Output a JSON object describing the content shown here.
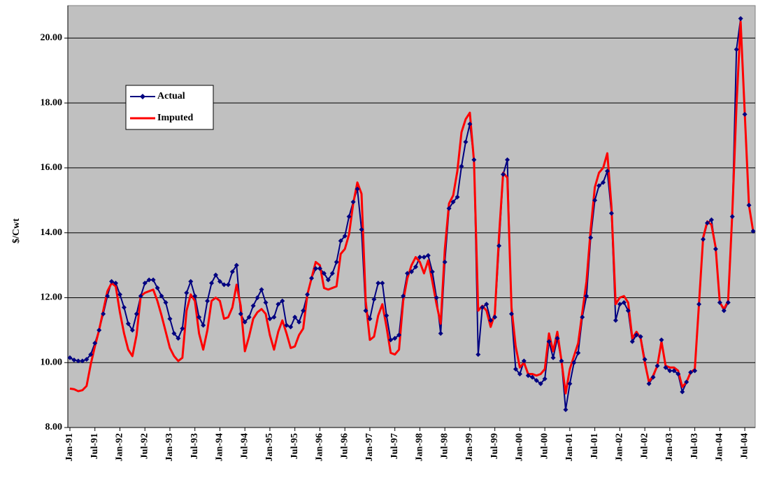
{
  "chart_data": {
    "type": "line",
    "y_label": "$/Cwt",
    "categories": [
      "Jan-91",
      null,
      null,
      null,
      null,
      null,
      "Jul-91",
      null,
      null,
      null,
      null,
      null,
      "Jan-92",
      null,
      null,
      null,
      null,
      null,
      "Jul-92",
      null,
      null,
      null,
      null,
      null,
      "Jan-93",
      null,
      null,
      null,
      null,
      null,
      "Jul-93",
      null,
      null,
      null,
      null,
      null,
      "Jan-94",
      null,
      null,
      null,
      null,
      null,
      "Jul-94",
      null,
      null,
      null,
      null,
      null,
      "Jan-95",
      null,
      null,
      null,
      null,
      null,
      "Jul-95",
      null,
      null,
      null,
      null,
      null,
      "Jan-96",
      null,
      null,
      null,
      null,
      null,
      "Jul-96",
      null,
      null,
      null,
      null,
      null,
      "Jan-97",
      null,
      null,
      null,
      null,
      null,
      "Jul-97",
      null,
      null,
      null,
      null,
      null,
      "Jan-98",
      null,
      null,
      null,
      null,
      null,
      "Jul-98",
      null,
      null,
      null,
      null,
      null,
      "Jan-99",
      null,
      null,
      null,
      null,
      null,
      "Jul-99",
      null,
      null,
      null,
      null,
      null,
      "Jan-00",
      null,
      null,
      null,
      null,
      null,
      "Jul-00",
      null,
      null,
      null,
      null,
      null,
      "Jan-01",
      null,
      null,
      null,
      null,
      null,
      "Jul-01",
      null,
      null,
      null,
      null,
      null,
      "Jan-02",
      null,
      null,
      null,
      null,
      null,
      "Jul-02",
      null,
      null,
      null,
      null,
      null,
      "Jan-03",
      null,
      null,
      null,
      null,
      null,
      "Jul-03",
      null,
      null,
      null,
      null,
      null,
      "Jan-04",
      null,
      null,
      null,
      null,
      null,
      "Jul-04",
      null,
      null
    ],
    "series": [
      {
        "name": "Actual",
        "color": "#000080",
        "marker": "diamond",
        "values": [
          10.15,
          10.08,
          10.05,
          10.05,
          10.1,
          10.25,
          10.6,
          11.0,
          11.5,
          12.05,
          12.5,
          12.45,
          12.1,
          11.7,
          11.2,
          11.0,
          11.5,
          12.05,
          12.45,
          12.55,
          12.55,
          12.3,
          12.05,
          11.85,
          11.35,
          10.9,
          10.75,
          11.05,
          12.15,
          12.5,
          12.05,
          11.4,
          11.15,
          11.9,
          12.45,
          12.7,
          12.5,
          12.4,
          12.4,
          12.8,
          13.0,
          11.5,
          11.25,
          11.4,
          11.75,
          12.0,
          12.25,
          11.85,
          11.35,
          11.4,
          11.8,
          11.9,
          11.15,
          11.1,
          11.4,
          11.25,
          11.6,
          12.1,
          12.6,
          12.9,
          12.9,
          12.75,
          12.55,
          12.75,
          13.1,
          13.75,
          13.9,
          14.5,
          14.95,
          15.35,
          14.1,
          11.6,
          11.35,
          11.95,
          12.45,
          12.45,
          11.45,
          10.7,
          10.75,
          10.85,
          12.05,
          12.75,
          12.8,
          12.95,
          13.25,
          13.25,
          13.3,
          12.8,
          12.0,
          10.9,
          13.1,
          14.75,
          14.95,
          15.1,
          16.05,
          16.8,
          17.35,
          16.25,
          10.25,
          11.7,
          11.8,
          11.3,
          11.4,
          13.6,
          15.8,
          16.25,
          11.5,
          9.8,
          9.65,
          10.05,
          9.6,
          9.55,
          9.45,
          9.35,
          9.5,
          10.65,
          10.15,
          10.75,
          10.05,
          8.55,
          9.35,
          10.0,
          10.3,
          11.4,
          12.05,
          13.85,
          15.0,
          15.45,
          15.55,
          15.9,
          14.6,
          11.3,
          11.8,
          11.85,
          11.6,
          10.65,
          10.85,
          10.8,
          10.1,
          9.35,
          9.55,
          9.9,
          10.7,
          9.85,
          9.75,
          9.75,
          9.65,
          9.1,
          9.4,
          9.7,
          9.75,
          11.8,
          13.8,
          14.3,
          14.4,
          13.5,
          11.85,
          11.6,
          11.85,
          14.5,
          19.65,
          20.6,
          17.65,
          14.85,
          14.05
        ]
      },
      {
        "name": "Imputed",
        "color": "#ff0000",
        "values": [
          9.2,
          9.18,
          9.12,
          9.15,
          9.28,
          9.95,
          10.5,
          11.0,
          11.6,
          12.2,
          12.45,
          12.35,
          11.55,
          10.9,
          10.4,
          10.2,
          10.85,
          12.05,
          12.15,
          12.2,
          12.25,
          11.9,
          11.45,
          10.95,
          10.45,
          10.2,
          10.05,
          10.15,
          11.6,
          12.1,
          11.9,
          10.9,
          10.4,
          11.0,
          11.9,
          12.0,
          11.9,
          11.35,
          11.4,
          11.7,
          12.4,
          11.75,
          10.35,
          10.8,
          11.35,
          11.55,
          11.65,
          11.5,
          10.85,
          10.4,
          10.95,
          11.3,
          10.9,
          10.45,
          10.5,
          10.85,
          11.05,
          12.1,
          12.6,
          13.1,
          13.0,
          12.3,
          12.25,
          12.3,
          12.35,
          13.35,
          13.5,
          13.95,
          14.9,
          15.55,
          15.2,
          11.9,
          10.7,
          10.8,
          11.45,
          11.8,
          11.1,
          10.3,
          10.25,
          10.4,
          11.9,
          12.6,
          13.0,
          13.25,
          13.1,
          12.75,
          13.15,
          12.5,
          11.8,
          11.2,
          13.5,
          14.9,
          15.15,
          15.9,
          17.1,
          17.5,
          17.7,
          16.2,
          11.6,
          11.75,
          11.6,
          11.1,
          11.5,
          13.9,
          15.85,
          15.7,
          11.7,
          10.5,
          9.85,
          10.0,
          9.65,
          9.65,
          9.6,
          9.65,
          9.8,
          10.9,
          10.35,
          10.95,
          10.05,
          9.05,
          9.8,
          10.2,
          10.6,
          11.55,
          12.5,
          14.1,
          15.4,
          15.85,
          16.0,
          16.45,
          14.8,
          11.8,
          12.0,
          12.05,
          11.85,
          10.75,
          10.95,
          10.75,
          10.0,
          9.4,
          9.6,
          9.9,
          10.65,
          9.9,
          9.85,
          9.85,
          9.75,
          9.25,
          9.4,
          9.7,
          9.8,
          11.8,
          13.85,
          14.35,
          14.25,
          13.55,
          11.85,
          11.65,
          11.9,
          14.6,
          17.9,
          20.5,
          17.65,
          14.85,
          14.05
        ]
      }
    ],
    "ylim": [
      8,
      21
    ],
    "yticks": [
      {
        "value": 8,
        "label": "8.00"
      },
      {
        "value": 10,
        "label": "10.00"
      },
      {
        "value": 12,
        "label": "12.00"
      },
      {
        "value": 14,
        "label": "14.00"
      },
      {
        "value": 16,
        "label": "16.00"
      },
      {
        "value": 18,
        "label": "18.00"
      },
      {
        "value": 20,
        "label": "20.00"
      }
    ],
    "grid": true,
    "plot_background": "#c0c0c0",
    "legend": "upper-left"
  }
}
